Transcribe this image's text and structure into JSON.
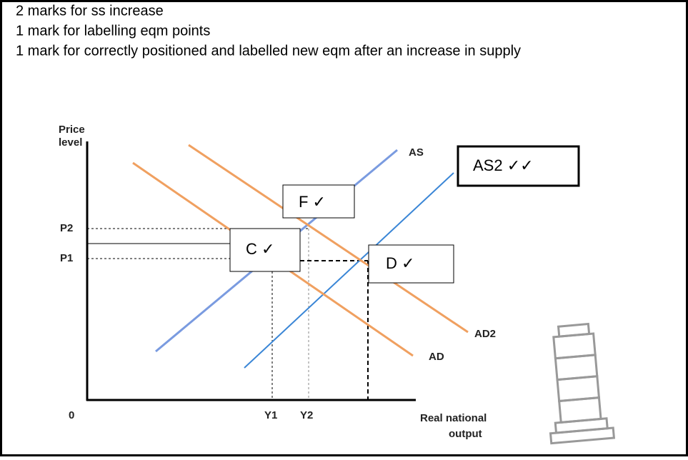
{
  "header": {
    "lines": [
      "2 marks for ss increase",
      "1 mark for labelling eqm points",
      "1 mark for correctly positioned and labelled new eqm after an increase in supply"
    ]
  },
  "diagram": {
    "y_axis_label": [
      "Price",
      "level"
    ],
    "x_axis_label": [
      "Real national",
      "output"
    ],
    "origin": "0",
    "price_labels": [
      "P2",
      "P1"
    ],
    "output_labels": [
      "Y1",
      "Y2"
    ],
    "curve_labels": {
      "as": "AS",
      "ad": "AD",
      "ad2": "AD2"
    },
    "annotations": {
      "f": "F ✓",
      "c": "C ✓",
      "d": "D ✓",
      "as2": "AS2 ✓✓"
    }
  }
}
